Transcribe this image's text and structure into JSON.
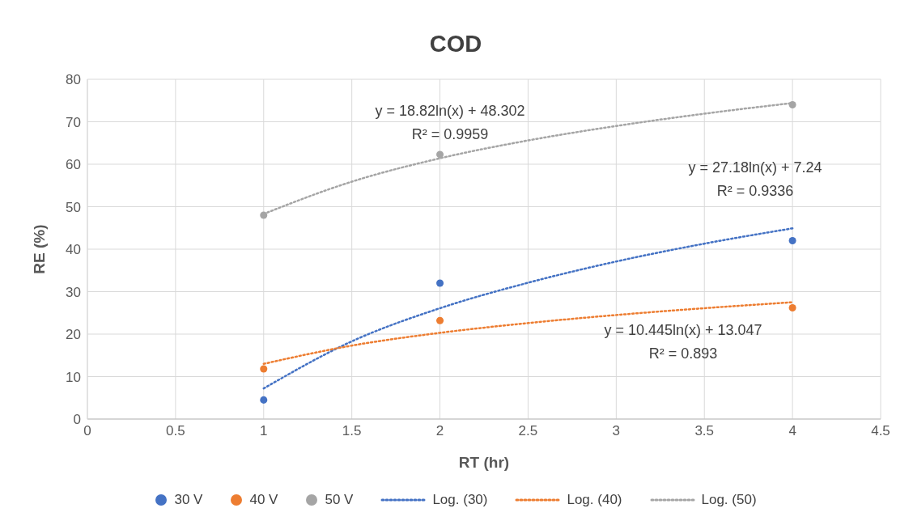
{
  "chart_data": {
    "type": "scatter",
    "title": "COD",
    "xlabel": "RT (hr)",
    "ylabel": "RE (%)",
    "xlim": [
      0,
      4.5
    ],
    "xticks": [
      0,
      0.5,
      1,
      1.5,
      2,
      2.5,
      3,
      3.5,
      4,
      4.5
    ],
    "ylim": [
      0,
      80
    ],
    "yticks": [
      0,
      10,
      20,
      30,
      40,
      50,
      60,
      70,
      80
    ],
    "grid": true,
    "legend": "bottom",
    "series": [
      {
        "name": "30 V",
        "marker": "circle",
        "color": "#4472c4",
        "x": [
          1,
          2,
          4
        ],
        "values": [
          4.5,
          32,
          42
        ]
      },
      {
        "name": "40 V",
        "marker": "circle",
        "color": "#ed7d31",
        "x": [
          1,
          2,
          4
        ],
        "values": [
          11.8,
          23.2,
          26.2
        ]
      },
      {
        "name": "50 V",
        "marker": "circle",
        "color": "#a5a5a5",
        "x": [
          1,
          2,
          4
        ],
        "values": [
          48,
          62.3,
          74
        ]
      },
      {
        "name": "Log. (30)",
        "type": "line",
        "marker": "none",
        "line_style": "dotted",
        "color": "#4472c4",
        "x": [
          1,
          1.5,
          2,
          2.5,
          3,
          3.5,
          4
        ],
        "values": [
          7.2,
          18.3,
          26.1,
          32.1,
          37.1,
          41.3,
          44.9
        ]
      },
      {
        "name": "Log. (40)",
        "type": "line",
        "marker": "none",
        "line_style": "dotted",
        "color": "#ed7d31",
        "x": [
          1,
          1.5,
          2,
          2.5,
          3,
          3.5,
          4
        ],
        "values": [
          13.0,
          17.3,
          20.3,
          22.6,
          24.5,
          26.1,
          27.5
        ]
      },
      {
        "name": "Log. (50)",
        "type": "line",
        "marker": "none",
        "line_style": "dotted",
        "color": "#a5a5a5",
        "x": [
          1,
          1.5,
          2,
          2.5,
          3,
          3.5,
          4
        ],
        "values": [
          48.3,
          55.9,
          61.4,
          65.6,
          69.0,
          71.9,
          74.4
        ]
      }
    ],
    "annotations": [
      "y = 18.82ln(x) + 48.302",
      "R² = 0.9959",
      "y = 27.18ln(x) + 7.24",
      "R² = 0.9336",
      "y = 10.445ln(x) + 13.047",
      "R² = 0.893"
    ]
  }
}
